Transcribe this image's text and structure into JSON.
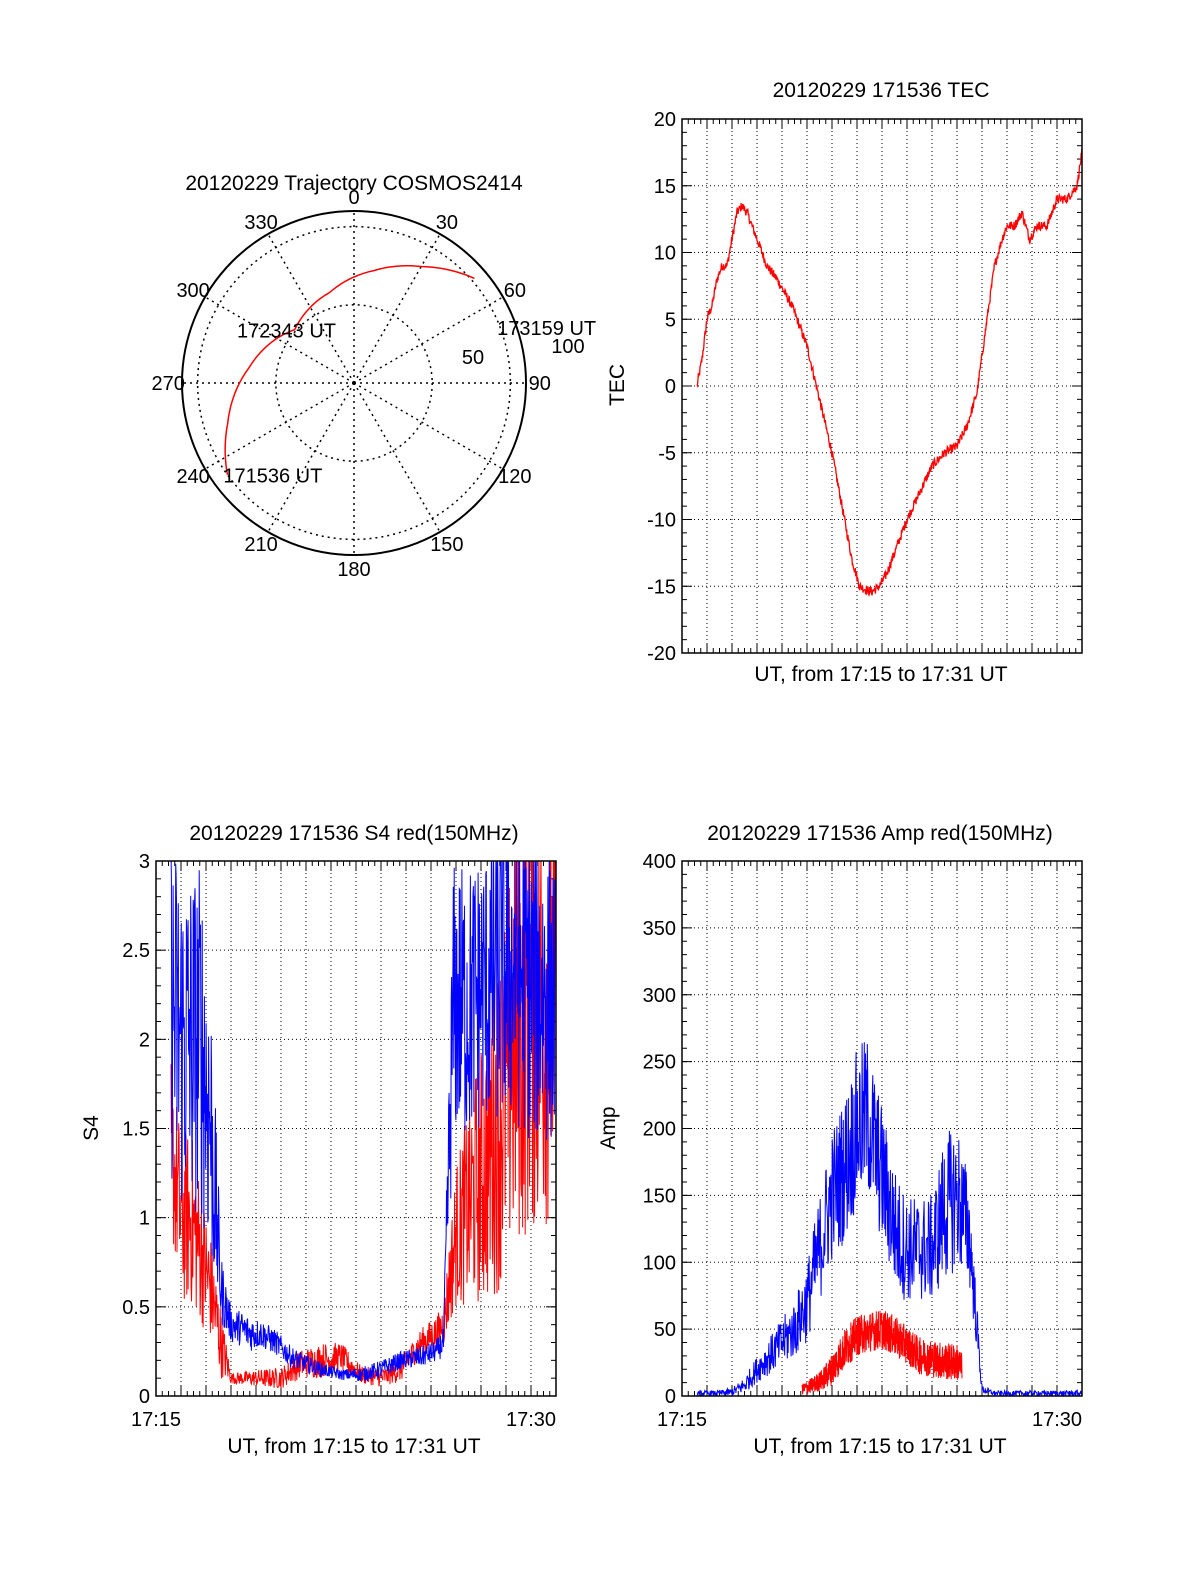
{
  "colors": {
    "red": "#ff0000",
    "blue": "#0000ff",
    "grid": "#000000"
  },
  "chart_data": [
    {
      "type": "polar",
      "title": "20120229 Trajectory COSMOS2414",
      "azimuth_labels": [
        "0",
        "30",
        "60",
        "90",
        "120",
        "150",
        "180",
        "210",
        "240",
        "270",
        "300",
        "330"
      ],
      "radius_labels": [
        "50",
        "100"
      ],
      "point_labels": [
        {
          "text": "173159 UT",
          "az": 68,
          "zen": 96
        },
        {
          "text": "172343 UT",
          "az": 312,
          "zen": 49
        },
        {
          "text": "171536 UT",
          "az": 235,
          "zen": 102
        }
      ],
      "trajectory": [
        {
          "az": 234,
          "zen": 100
        },
        {
          "az": 252,
          "zen": 85
        },
        {
          "az": 278,
          "zen": 68
        },
        {
          "az": 312,
          "zen": 51
        },
        {
          "az": 345,
          "zen": 60
        },
        {
          "az": 10,
          "zen": 73
        },
        {
          "az": 30,
          "zen": 86
        },
        {
          "az": 49,
          "zen": 102
        }
      ]
    },
    {
      "type": "line",
      "title": "20120229 171536 TEC",
      "xlabel": "UT, from 17:15 to 17:31 UT",
      "ylabel": "TEC",
      "xlim": [
        0,
        16
      ],
      "ylim": [
        -20,
        20
      ],
      "yticks": [
        -20,
        -15,
        -10,
        -5,
        0,
        5,
        10,
        15,
        20
      ],
      "xticklabels": [],
      "series": [
        {
          "color": "red",
          "x": [
            0.6,
            0.8,
            1.0,
            1.2,
            1.4,
            1.6,
            1.8,
            2.0,
            2.2,
            2.4,
            2.6,
            3.0,
            3.4,
            3.8,
            4.4,
            5.0,
            5.5,
            6.0,
            6.4,
            6.8,
            7.1,
            7.4,
            7.6,
            7.9,
            8.2,
            8.6,
            9.0,
            9.5,
            10.0,
            10.5,
            11.0,
            11.4,
            11.8,
            12.2,
            12.5,
            12.8,
            13.0,
            13.3,
            13.6,
            13.9,
            14.2,
            14.6,
            15.0,
            15.4,
            15.8,
            16.0
          ],
          "y": [
            0,
            2,
            5,
            6,
            8,
            9,
            9,
            11,
            13,
            13.5,
            13,
            11,
            9,
            8,
            6,
            3,
            -1,
            -5,
            -9,
            -13,
            -15,
            -15.3,
            -15.4,
            -15,
            -14,
            -12,
            -10,
            -8,
            -6,
            -5,
            -4.5,
            -3,
            -0.5,
            5,
            9,
            11,
            12,
            12,
            13,
            11,
            12,
            12,
            14,
            14,
            15,
            17.5
          ]
        }
      ],
      "noise": 0.35
    },
    {
      "type": "line",
      "title": "20120229 171536 S4 red(150MHz)",
      "xlabel": "UT, from 17:15 to 17:31 UT",
      "ylabel": "S4",
      "xlim": [
        0,
        16
      ],
      "ylim": [
        0,
        3
      ],
      "yticks": [
        0,
        0.5,
        1,
        1.5,
        2,
        2.5,
        3
      ],
      "xticklabels": [
        {
          "x": 0,
          "label": "17:15"
        },
        {
          "x": 15,
          "label": "17:30"
        }
      ],
      "series": [
        {
          "color": "red",
          "x": [
            0.6,
            1.0,
            1.4,
            1.8,
            2.2,
            2.6,
            3.0,
            3.6,
            4.2,
            5.0,
            5.8,
            6.6,
            7.4,
            8.2,
            9.0,
            9.8,
            10.6,
            11.2,
            11.5,
            12.0,
            12.6,
            13.2,
            13.8,
            14.4,
            15.0,
            15.4,
            16.0
          ],
          "y": [
            1.4,
            1.0,
            1.0,
            0.8,
            0.6,
            0.3,
            0.1,
            0.1,
            0.1,
            0.1,
            0.18,
            0.2,
            0.22,
            0.12,
            0.1,
            0.15,
            0.3,
            0.35,
            0.4,
            0.9,
            1.1,
            1.3,
            1.6,
            2.0,
            2.2,
            2.2,
            2.2
          ],
          "noise": [
            0.5,
            0.5,
            0.5,
            0.4,
            0.3,
            0.2,
            0.03,
            0.04,
            0.05,
            0.06,
            0.08,
            0.1,
            0.08,
            0.05,
            0.05,
            0.07,
            0.08,
            0.1,
            0.12,
            0.4,
            0.6,
            0.8,
            1.0,
            1.2,
            1.3,
            1.3,
            1.2
          ]
        },
        {
          "color": "blue",
          "x": [
            0.6,
            1.0,
            1.4,
            1.8,
            2.2,
            2.6,
            3.0,
            3.4,
            3.8,
            4.2,
            4.8,
            5.4,
            6.0,
            6.6,
            7.4,
            8.2,
            9.0,
            9.8,
            10.6,
            11.2,
            11.5,
            11.9,
            12.5,
            13.2,
            13.8,
            14.4,
            15.0,
            15.4,
            16.0
          ],
          "y": [
            2.2,
            2.0,
            2.0,
            2.0,
            1.5,
            0.6,
            0.4,
            0.38,
            0.35,
            0.35,
            0.3,
            0.22,
            0.18,
            0.15,
            0.12,
            0.12,
            0.15,
            0.2,
            0.22,
            0.25,
            0.3,
            2.2,
            2.2,
            2.3,
            2.4,
            2.4,
            2.3,
            2.3,
            2.2
          ],
          "noise": [
            1.0,
            1.0,
            1.0,
            1.0,
            0.8,
            0.2,
            0.1,
            0.1,
            0.1,
            0.08,
            0.07,
            0.06,
            0.05,
            0.04,
            0.03,
            0.04,
            0.05,
            0.05,
            0.06,
            0.06,
            0.08,
            0.8,
            0.8,
            0.8,
            0.9,
            0.9,
            0.9,
            0.9,
            0.8
          ]
        }
      ]
    },
    {
      "type": "line",
      "title": "20120229 171536 Amp red(150MHz)",
      "xlabel": "UT, from 17:15 to 17:31 UT",
      "ylabel": "Amp",
      "xlim": [
        0,
        16
      ],
      "ylim": [
        0,
        400
      ],
      "yticks": [
        0,
        50,
        100,
        150,
        200,
        250,
        300,
        350,
        400
      ],
      "xticklabels": [
        {
          "x": 0,
          "label": "17:15"
        },
        {
          "x": 15,
          "label": "17:30"
        }
      ],
      "series": [
        {
          "color": "blue",
          "x": [
            0.6,
            1.4,
            2.0,
            2.5,
            3.0,
            3.5,
            4.0,
            4.5,
            5.0,
            5.5,
            6.0,
            6.5,
            7.0,
            7.4,
            7.8,
            8.2,
            8.6,
            9.0,
            9.5,
            10.0,
            10.5,
            11.0,
            11.2,
            11.5,
            12.0,
            12.5,
            13.0,
            13.5,
            14.0,
            14.5,
            15.0,
            15.5,
            16.0
          ],
          "y": [
            2,
            2,
            3,
            8,
            20,
            30,
            40,
            50,
            70,
            110,
            150,
            170,
            200,
            210,
            180,
            150,
            120,
            110,
            110,
            110,
            140,
            150,
            140,
            120,
            5,
            2,
            2,
            2,
            2,
            2,
            2,
            2,
            2
          ],
          "noise": [
            2,
            2,
            3,
            6,
            10,
            14,
            18,
            22,
            30,
            40,
            50,
            55,
            60,
            60,
            55,
            50,
            45,
            40,
            40,
            40,
            55,
            55,
            50,
            40,
            3,
            2,
            2,
            2,
            2,
            2,
            2,
            2,
            2
          ]
        },
        {
          "color": "red",
          "x": [
            4.8,
            5.2,
            5.6,
            6.0,
            6.5,
            7.0,
            7.5,
            8.0,
            8.5,
            9.0,
            9.5,
            10.0,
            10.5,
            11.0,
            11.2
          ],
          "y": [
            5,
            8,
            12,
            20,
            35,
            45,
            48,
            50,
            45,
            38,
            30,
            28,
            26,
            25,
            22
          ],
          "noise": [
            4,
            6,
            8,
            12,
            15,
            15,
            15,
            15,
            15,
            14,
            14,
            14,
            14,
            14,
            10
          ]
        }
      ]
    }
  ]
}
